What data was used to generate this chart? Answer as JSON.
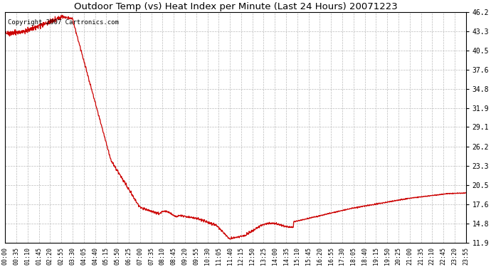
{
  "title": "Outdoor Temp (vs) Heat Index per Minute (Last 24 Hours) 20071223",
  "copyright_text": "Copyright 2007 Cartronics.com",
  "line_color": "#cc0000",
  "background_color": "#ffffff",
  "plot_bg_color": "#ffffff",
  "grid_color": "#bbbbbb",
  "grid_style": "--",
  "y_ticks": [
    11.9,
    14.8,
    17.6,
    20.5,
    23.3,
    26.2,
    29.1,
    31.9,
    34.8,
    37.6,
    40.5,
    43.3,
    46.2
  ],
  "ylim": [
    11.9,
    46.2
  ],
  "x_tick_labels": [
    "00:00",
    "00:35",
    "01:10",
    "01:45",
    "02:20",
    "02:55",
    "03:30",
    "04:05",
    "04:40",
    "05:15",
    "05:50",
    "06:25",
    "07:00",
    "07:35",
    "08:10",
    "08:45",
    "09:20",
    "09:55",
    "10:30",
    "11:05",
    "11:40",
    "12:15",
    "12:50",
    "13:25",
    "14:00",
    "14:35",
    "15:10",
    "15:45",
    "16:20",
    "16:55",
    "17:30",
    "18:05",
    "18:40",
    "19:15",
    "19:50",
    "20:25",
    "21:00",
    "21:35",
    "22:10",
    "22:45",
    "23:20",
    "23:55"
  ],
  "figsize": [
    6.9,
    3.75
  ],
  "dpi": 100
}
